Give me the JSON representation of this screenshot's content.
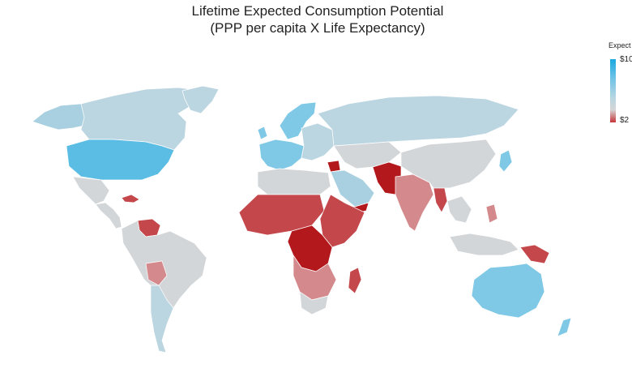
{
  "title": {
    "line1": "Lifetime Expected Consumption Potential",
    "line2": "(PPP per capita X Life Expectancy)"
  },
  "legend": {
    "title": "Expect",
    "max_label": "$10",
    "min_label": "$2"
  },
  "colors": {
    "very_high": "#5bbde4",
    "high": "#7fc8e6",
    "mid_blue": "#a8d0e0",
    "light_blue": "#bcd6e1",
    "gray": "#d3d6d8",
    "light_red": "#d48a8d",
    "mid_red": "#c4474b",
    "dark_red": "#b3181d"
  },
  "regions": [
    {
      "name": "north-america",
      "level": "very_high"
    },
    {
      "name": "canada",
      "level": "light_blue"
    },
    {
      "name": "alaska",
      "level": "mid_blue"
    },
    {
      "name": "greenland",
      "level": "light_blue"
    },
    {
      "name": "mexico",
      "level": "gray"
    },
    {
      "name": "central-america",
      "level": "gray"
    },
    {
      "name": "caribbean",
      "level": "mid_red"
    },
    {
      "name": "venezuela",
      "level": "mid_red"
    },
    {
      "name": "south-america",
      "level": "gray"
    },
    {
      "name": "bolivia",
      "level": "light_red"
    },
    {
      "name": "chile-argentina-south",
      "level": "light_blue"
    },
    {
      "name": "western-europe",
      "level": "high"
    },
    {
      "name": "scandinavia",
      "level": "high"
    },
    {
      "name": "eastern-europe",
      "level": "light_blue"
    },
    {
      "name": "russia",
      "level": "light_blue"
    },
    {
      "name": "north-africa",
      "level": "gray"
    },
    {
      "name": "sub-saharan-africa",
      "level": "mid_red"
    },
    {
      "name": "central-africa",
      "level": "dark_red"
    },
    {
      "name": "southern-africa",
      "level": "light_red"
    },
    {
      "name": "south-africa",
      "level": "gray"
    },
    {
      "name": "madagascar",
      "level": "mid_red"
    },
    {
      "name": "arabia",
      "level": "mid_blue"
    },
    {
      "name": "yemen",
      "level": "dark_red"
    },
    {
      "name": "syria",
      "level": "dark_red"
    },
    {
      "name": "iran-central-asia",
      "level": "gray"
    },
    {
      "name": "afghanistan-pakistan",
      "level": "dark_red"
    },
    {
      "name": "india",
      "level": "light_red"
    },
    {
      "name": "myanmar",
      "level": "mid_red"
    },
    {
      "name": "china",
      "level": "gray"
    },
    {
      "name": "japan",
      "level": "high"
    },
    {
      "name": "southeast-asia",
      "level": "gray"
    },
    {
      "name": "philippines",
      "level": "light_red"
    },
    {
      "name": "indonesia",
      "level": "gray"
    },
    {
      "name": "papua-new-guinea",
      "level": "mid_red"
    },
    {
      "name": "australia",
      "level": "high"
    },
    {
      "name": "new-zealand",
      "level": "high"
    }
  ]
}
